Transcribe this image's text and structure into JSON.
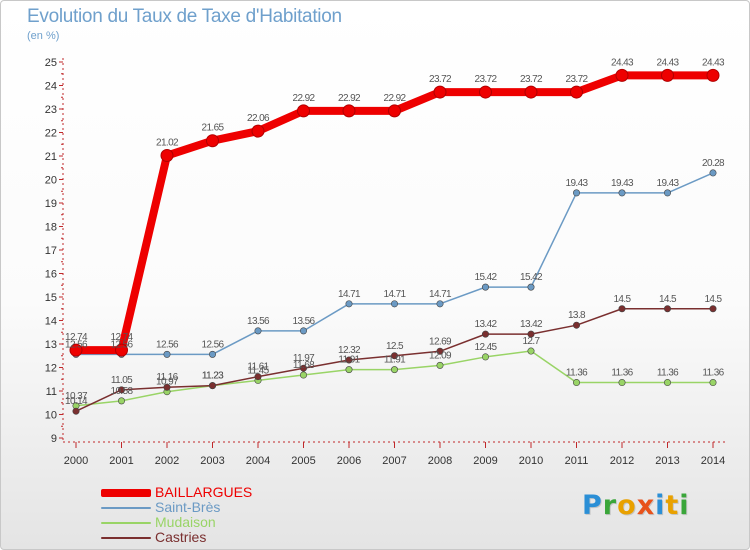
{
  "header": {
    "title": "Evolution du Taux de Taxe d'Habitation",
    "unit": "(en %)"
  },
  "brand": {
    "logo_text": "Proxiti",
    "logo_colors": [
      "#2b8fd6",
      "#3aa63a",
      "#e9a100",
      "#e8521b",
      "#2b8fd6",
      "#e9a100",
      "#3aa63a"
    ]
  },
  "chart_data": {
    "type": "line",
    "title": "Evolution du Taux de Taxe d'Habitation",
    "ylabel": "(en %)",
    "xlabel": "",
    "x": [
      "2000",
      "2001",
      "2002",
      "2003",
      "2004",
      "2005",
      "2006",
      "2007",
      "2008",
      "2009",
      "2010",
      "2011",
      "2012",
      "2013",
      "2014"
    ],
    "yticks": [
      "9",
      "10",
      "11",
      "12",
      "13",
      "14",
      "15",
      "16",
      "17",
      "18",
      "19",
      "20",
      "21",
      "22",
      "23",
      "24",
      "25"
    ],
    "ylim": [
      9,
      25
    ],
    "grid": false,
    "legend_position": "bottom-left",
    "series": [
      {
        "name": "BAILLARGUES",
        "color": "#ee0000",
        "values": [
          12.74,
          12.74,
          21.02,
          21.65,
          22.06,
          22.92,
          22.92,
          22.92,
          23.72,
          23.72,
          23.72,
          23.72,
          24.43,
          24.43,
          24.43
        ],
        "labels": [
          "12.74",
          "12.74",
          "21.02",
          "21.65",
          "22.06",
          "22.92",
          "22.92",
          "22.92",
          "23.72",
          "23.72",
          "23.72",
          "23.72",
          "24.43",
          "24.43",
          "24.43"
        ]
      },
      {
        "name": "Saint-Brès",
        "color": "#6b9ac4",
        "values": [
          12.56,
          12.56,
          12.56,
          12.56,
          13.56,
          13.56,
          14.71,
          14.71,
          14.71,
          15.42,
          15.42,
          19.43,
          19.43,
          19.43,
          20.28
        ],
        "labels": [
          "12.56",
          "12.56",
          "12.56",
          "12.56",
          "13.56",
          "13.56",
          "14.71",
          "14.71",
          "14.71",
          "15.42",
          "15.42",
          "19.43",
          "19.43",
          "19.43",
          "20.28"
        ]
      },
      {
        "name": "Mudaison",
        "color": "#99d466",
        "values": [
          10.37,
          10.58,
          10.97,
          11.23,
          11.45,
          11.68,
          11.91,
          11.91,
          12.09,
          12.45,
          12.7,
          11.36,
          11.36,
          11.36,
          11.36
        ],
        "labels": [
          "10.37",
          "10.58",
          "10.97",
          "11.23",
          "11.45",
          "11.68",
          "11.91",
          "11.91",
          "12.09",
          "12.45",
          "12.7",
          "11.36",
          "11.36",
          "11.36",
          "11.36"
        ]
      },
      {
        "name": "Castries",
        "color": "#7a2f2f",
        "values": [
          10.14,
          11.05,
          11.16,
          11.23,
          11.61,
          11.97,
          12.32,
          12.5,
          12.69,
          13.42,
          13.42,
          13.8,
          14.5,
          14.5,
          14.5
        ],
        "labels": [
          "10.14",
          "11.05",
          "11.16",
          "11.23",
          "11.61",
          "11.97",
          "12.32",
          "12.5",
          "12.69",
          "13.42",
          "13.42",
          "13.8",
          "14.5",
          "14.5",
          "14.5"
        ]
      }
    ]
  }
}
